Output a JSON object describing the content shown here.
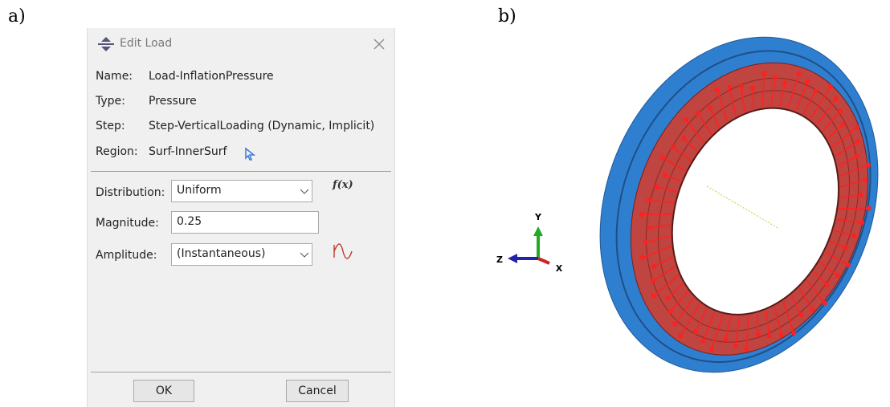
{
  "panels": {
    "a": "a)",
    "b": "b)"
  },
  "dialog": {
    "title": "Edit Load",
    "fields": [
      {
        "label": "Name:",
        "value": "Load-InflationPressure"
      },
      {
        "label": "Type:",
        "value": "Pressure"
      },
      {
        "label": "Step:",
        "value": "Step-VerticalLoading (Dynamic, Implicit)"
      },
      {
        "label": "Region:",
        "value": "Surf-InnerSurf"
      }
    ],
    "distribution": {
      "label": "Distribution:",
      "value": "Uniform",
      "function": "f(x)"
    },
    "magnitude": {
      "label": "Magnitude:",
      "value": "0.25"
    },
    "amplitude": {
      "label": "Amplitude:",
      "value": "(Instantaneous)"
    },
    "buttons": {
      "ok": "OK",
      "cancel": "Cancel"
    }
  },
  "triad": {
    "y": "Y",
    "z": "Z",
    "x": "X"
  }
}
